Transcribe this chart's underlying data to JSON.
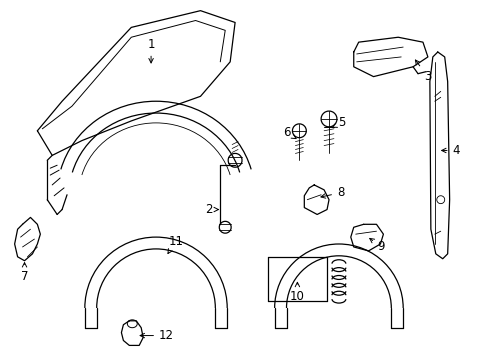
{
  "background_color": "#ffffff",
  "line_color": "#000000",
  "fig_width": 4.89,
  "fig_height": 3.6,
  "dpi": 100,
  "font_size": 8.5
}
